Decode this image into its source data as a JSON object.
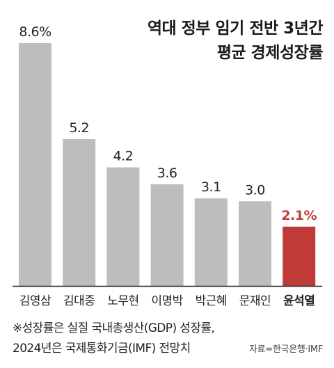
{
  "title_line1": "역대 정부 임기 전반 3년간",
  "title_line2": "평균 경제성장률",
  "note_line1": "※성장률은 실질 국내총생산(GDP) 성장률,",
  "note_line2": "2024년은 국제통화기금(IMF) 전망치",
  "source": "자료=한국은행·IMF",
  "colors": {
    "bar": "#bdbdbd",
    "highlight": "#c03a38",
    "axis": "#222222"
  },
  "chart_data": {
    "type": "bar",
    "title": "역대 정부 임기 전반 3년간 평균 경제성장률",
    "categories": [
      "김영삼",
      "김대중",
      "노무현",
      "이명박",
      "박근혜",
      "문재인",
      "윤석열"
    ],
    "values": [
      8.6,
      5.2,
      4.2,
      3.6,
      3.1,
      3.0,
      2.1
    ],
    "labels": [
      "8.6%",
      "5.2",
      "4.2",
      "3.6",
      "3.1",
      "3.0",
      "2.1%"
    ],
    "highlight_index": 6,
    "ylim": [
      0,
      8.6
    ],
    "grid": false
  }
}
